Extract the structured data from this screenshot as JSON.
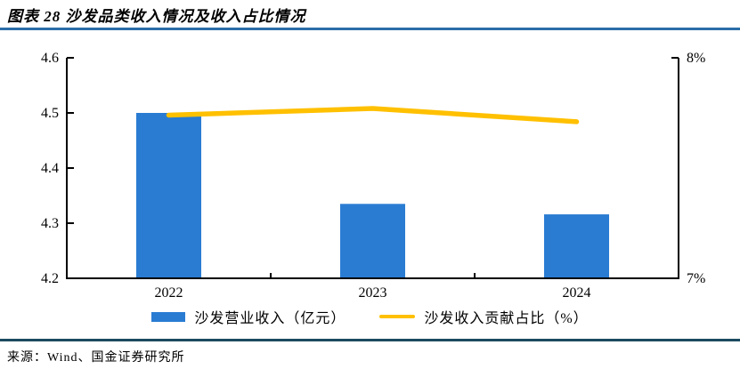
{
  "header": {
    "title": "图表 28 沙发品类收入情况及收入占比情况"
  },
  "footer": {
    "source": "来源：Wind、国金证券研究所"
  },
  "colors": {
    "bar": "#2A7CD2",
    "line": "#FFC000",
    "title_rule": "#2A6DA8",
    "bottom_rule": "#1B4A5F",
    "axis": "#000000"
  },
  "chart_data": {
    "type": "bar",
    "subtype": "bar+line combo, dual y-axis",
    "categories": [
      "2022",
      "2023",
      "2024"
    ],
    "series": [
      {
        "name": "沙发营业收入（亿元）",
        "type": "bar",
        "axis": "left",
        "values": [
          4.5,
          4.335,
          4.316
        ],
        "color": "#2A7CD2"
      },
      {
        "name": "沙发收入贡献占比（%）",
        "type": "line",
        "axis": "right",
        "values": [
          7.74,
          7.77,
          7.71
        ],
        "color": "#FFC000"
      }
    ],
    "left_axis": {
      "min": 4.2,
      "max": 4.6,
      "tick_labels": [
        "4.6",
        "4.5",
        "4.4",
        "4.3",
        "4.2"
      ],
      "tick_values": [
        4.6,
        4.5,
        4.4,
        4.3,
        4.2
      ]
    },
    "right_axis": {
      "min": 7,
      "max": 8,
      "tick_labels": [
        "8%",
        "7%"
      ],
      "tick_values": [
        8,
        7
      ]
    },
    "title": "",
    "xlabel": "",
    "ylabel": "",
    "grid": false,
    "legend_position": "bottom"
  }
}
